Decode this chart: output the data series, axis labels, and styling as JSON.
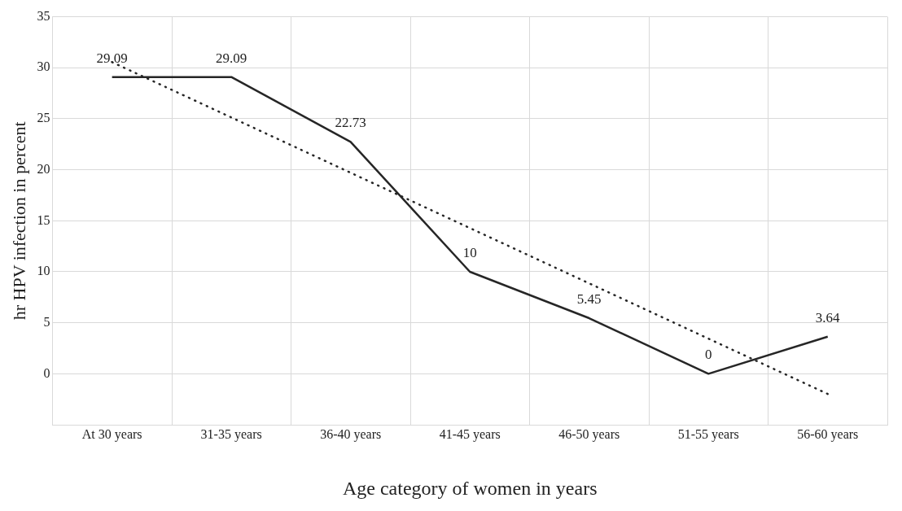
{
  "chart_data": {
    "type": "line",
    "xlabel": "Age category of women in years",
    "ylabel": "hr HPV infection in percent",
    "categories": [
      "At 30 years",
      "31-35 years",
      "36-40 years",
      "41-45 years",
      "46-50 years",
      "51-55 years",
      "56-60 years"
    ],
    "series": [
      {
        "type": "line",
        "color": "#262626",
        "values": [
          29.09,
          29.09,
          22.73,
          10,
          5.45,
          0,
          3.64
        ],
        "value_labels": [
          "29.09",
          "29.09",
          "22.73",
          "10",
          "5.45",
          "0",
          "3.64"
        ],
        "line_style": "solid"
      },
      {
        "type": "line",
        "color": "#262626",
        "x": [
          "At 30 years",
          "56-60 years"
        ],
        "values": [
          30.55,
          -1.98
        ],
        "line_style": "dotted"
      }
    ],
    "ylim": [
      -5,
      35
    ],
    "yticks": [
      0,
      5,
      10,
      15,
      20,
      25,
      30,
      35
    ],
    "grid": true,
    "legend": false,
    "marker": "none"
  }
}
